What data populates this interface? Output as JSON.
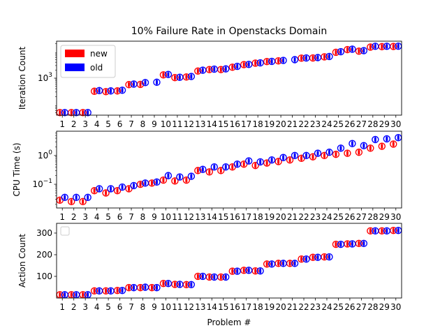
{
  "chart_data": {
    "type": "box",
    "title": "10% Failure Rate in Openstacks Domain",
    "xlabel": "Problem #",
    "problems": [
      1,
      2,
      3,
      4,
      5,
      6,
      7,
      8,
      9,
      10,
      11,
      12,
      13,
      14,
      15,
      16,
      17,
      18,
      19,
      20,
      21,
      22,
      23,
      24,
      25,
      26,
      27,
      28,
      29,
      30
    ],
    "legend": {
      "entries": [
        {
          "name": "new",
          "color": "#ff0000"
        },
        {
          "name": "old",
          "color": "#0000ff"
        }
      ],
      "placement": "upper-left"
    },
    "panels": [
      {
        "ylabel": "Iteration Count",
        "scale": "log",
        "ylim": [
          40,
          25000
        ],
        "ticks": [
          {
            "value": 1000,
            "label": "10^3",
            "base": "10",
            "exp": "3"
          }
        ],
        "series": [
          {
            "name": "new",
            "values": [
              50,
              50,
              50,
              320,
              310,
              330,
              570,
              580,
              null,
              1330,
              1050,
              1110,
              1860,
              2110,
              2110,
              2600,
              3250,
              3700,
              4250,
              4500,
              null,
              5700,
              5800,
              6400,
              9500,
              12000,
              10500,
              15000,
              15500,
              15800
            ]
          },
          {
            "name": "old",
            "values": [
              50,
              50,
              50,
              340,
              330,
              350,
              600,
              680,
              700,
              1380,
              1080,
              1160,
              2000,
              2200,
              2250,
              2800,
              3300,
              3800,
              4300,
              4700,
              5000,
              5800,
              6000,
              6600,
              10000,
              12500,
              11000,
              16000,
              16000,
              16200
            ]
          }
        ]
      },
      {
        "ylabel": "CPU Time (s)",
        "scale": "log",
        "ylim": [
          0.015,
          7
        ],
        "ticks": [
          {
            "value": 0.1,
            "label": "10^-1",
            "base": "10",
            "exp": "−1"
          },
          {
            "value": 1,
            "label": "10^0",
            "base": "10",
            "exp": "0"
          }
        ],
        "series": [
          {
            "name": "new",
            "values": [
              0.028,
              0.025,
              0.025,
              0.06,
              0.05,
              0.06,
              0.07,
              0.1,
              0.11,
              0.14,
              0.13,
              0.14,
              0.3,
              0.27,
              0.3,
              0.4,
              0.5,
              0.45,
              0.55,
              0.62,
              0.7,
              0.8,
              0.9,
              1.0,
              1.1,
              1.2,
              1.3,
              1.8,
              2.1,
              2.5
            ]
          },
          {
            "name": "old",
            "values": [
              0.035,
              0.035,
              0.035,
              0.07,
              0.07,
              0.08,
              0.09,
              0.11,
              0.12,
              0.2,
              0.18,
              0.19,
              0.33,
              0.4,
              0.4,
              0.5,
              0.65,
              0.6,
              0.7,
              0.85,
              1.0,
              1.0,
              1.2,
              1.3,
              1.8,
              2.6,
              2.2,
              3.6,
              3.8,
              4.2
            ]
          }
        ]
      },
      {
        "ylabel": "Action Count",
        "scale": "linear",
        "ylim": [
          0,
          345
        ],
        "ticks": [
          {
            "value": 100,
            "label": "100"
          },
          {
            "value": 200,
            "label": "200"
          },
          {
            "value": 300,
            "label": "300"
          }
        ],
        "series": [
          {
            "name": "new",
            "values": [
              15,
              15,
              15,
              33,
              33,
              35,
              48,
              48,
              48,
              67,
              63,
              62,
              100,
              97,
              97,
              124,
              128,
              125,
              157,
              160,
              160,
              180,
              188,
              190,
              248,
              250,
              252,
              310,
              310,
              312
            ]
          },
          {
            "name": "old",
            "values": [
              15,
              15,
              15,
              33,
              33,
              35,
              48,
              50,
              48,
              67,
              63,
              62,
              100,
              97,
              97,
              124,
              128,
              125,
              157,
              160,
              160,
              180,
              188,
              190,
              248,
              250,
              252,
              310,
              310,
              312
            ]
          }
        ]
      }
    ]
  }
}
